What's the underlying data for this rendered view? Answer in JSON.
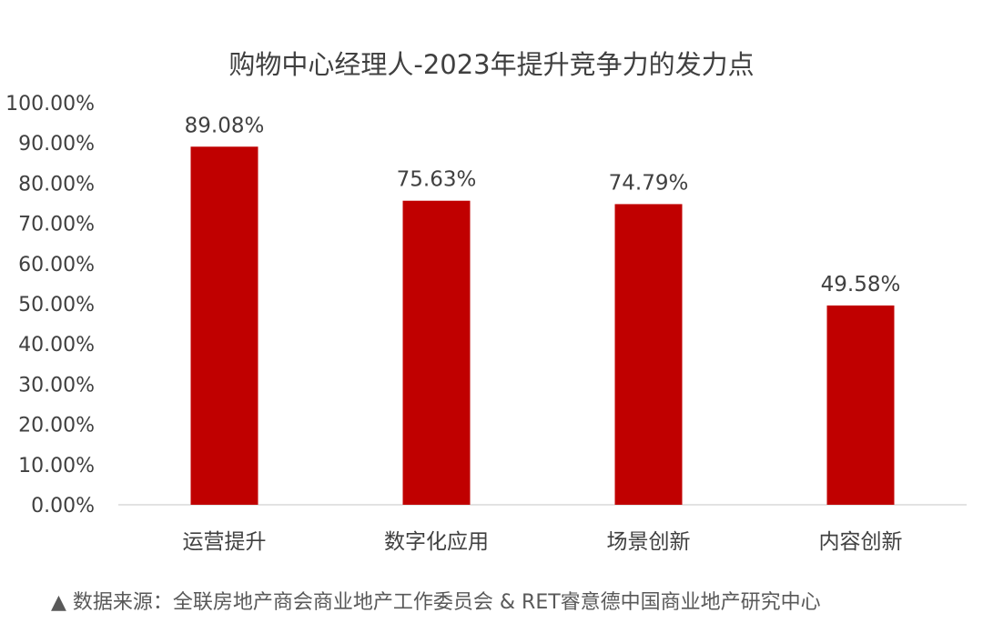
{
  "chart_data": {
    "type": "bar",
    "title": "购物中心经理人-2023年提升竞争力的发力点",
    "categories": [
      "运营提升",
      "数字化应用",
      "场景创新",
      "内容创新"
    ],
    "values": [
      89.08,
      75.63,
      74.79,
      49.58
    ],
    "data_labels": [
      "89.08%",
      "75.63%",
      "74.79%",
      "49.58%"
    ],
    "y_ticks": [
      "0.00%",
      "10.00%",
      "20.00%",
      "30.00%",
      "40.00%",
      "50.00%",
      "60.00%",
      "70.00%",
      "80.00%",
      "90.00%",
      "100.00%"
    ],
    "ylim": [
      0,
      100
    ],
    "grid": false,
    "legend": "none",
    "bar_color": "#C00000"
  },
  "footer": {
    "source": "▲ 数据来源：全联房地产商会商业地产工作委员会 & RET睿意德中国商业地产研究中心"
  }
}
